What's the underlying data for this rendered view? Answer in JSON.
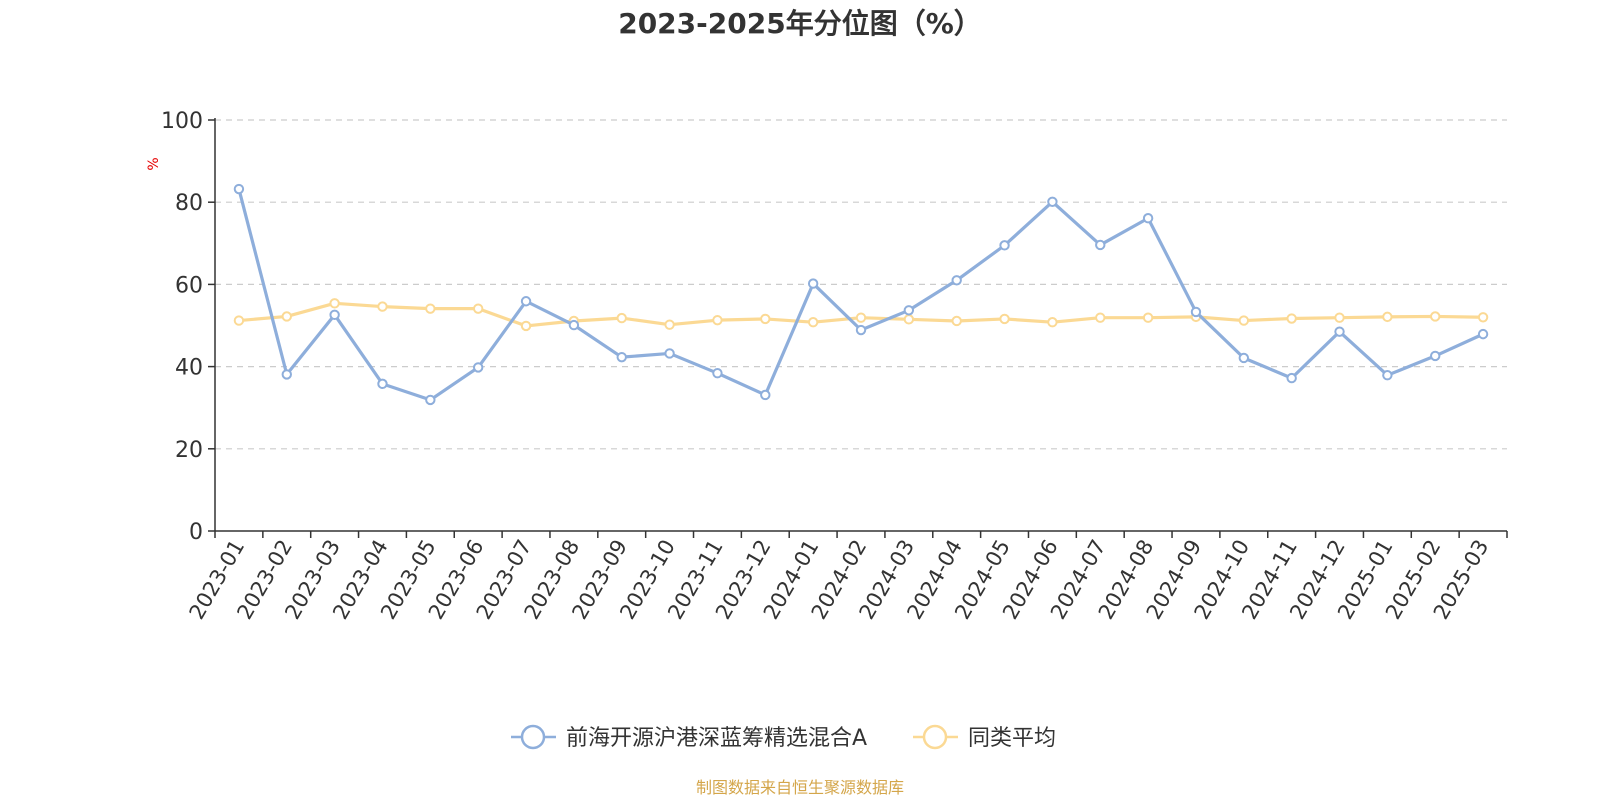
{
  "chart_data": {
    "type": "line",
    "title": "2023-2025年分位图（%）",
    "ylabel": "%",
    "ylim": [
      0,
      100
    ],
    "yticks": [
      "0",
      "20",
      "40",
      "60",
      "80",
      "100"
    ],
    "grid": true,
    "legend_position": "bottom",
    "categories": [
      "2023-01",
      "2023-02",
      "2023-03",
      "2023-04",
      "2023-05",
      "2023-06",
      "2023-07",
      "2023-08",
      "2023-09",
      "2023-10",
      "2023-11",
      "2023-12",
      "2024-01",
      "2024-02",
      "2024-03",
      "2024-04",
      "2024-05",
      "2024-06",
      "2024-07",
      "2024-08",
      "2024-09",
      "2024-10",
      "2024-11",
      "2024-12",
      "2025-01",
      "2025-02",
      "2025-03"
    ],
    "series": [
      {
        "name": "前海开源沪港深蓝筹精选混合A",
        "color": "#8eaedb",
        "values": [
          83.2,
          38.1,
          52.6,
          35.8,
          31.9,
          39.8,
          55.9,
          50.1,
          42.3,
          43.2,
          38.4,
          33.1,
          60.2,
          48.9,
          53.7,
          61.0,
          69.5,
          80.1,
          69.6,
          76.1,
          53.3,
          42.1,
          37.2,
          48.5,
          37.9,
          42.6,
          47.9
        ]
      },
      {
        "name": "同类平均",
        "color": "#fbd994",
        "values": [
          51.2,
          52.2,
          55.4,
          54.6,
          54.1,
          54.1,
          49.9,
          51.1,
          51.8,
          50.2,
          51.3,
          51.6,
          50.8,
          51.9,
          51.5,
          51.1,
          51.6,
          50.8,
          51.9,
          51.9,
          52.1,
          51.2,
          51.7,
          51.9,
          52.1,
          52.2,
          52.0
        ]
      }
    ],
    "source": "制图数据来自恒生聚源数据库",
    "colors": {
      "axis": "#333333",
      "grid": "#cccccc",
      "unit": "#e60000",
      "source": "#d4a64a"
    }
  }
}
